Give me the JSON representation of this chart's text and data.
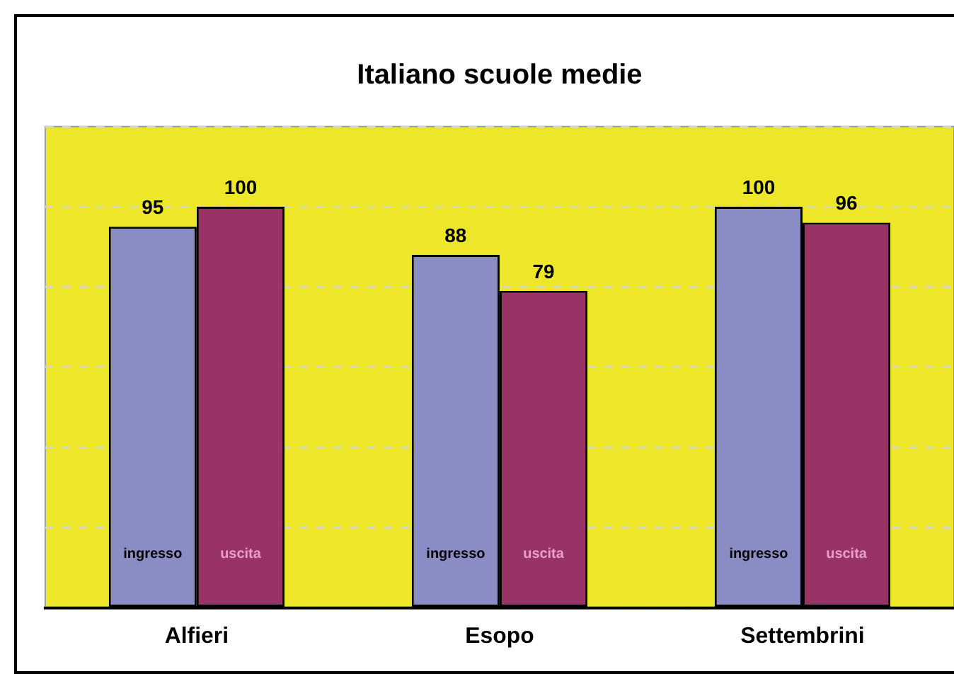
{
  "chart_data": {
    "type": "bar",
    "title": "Italiano scuole medie",
    "categories": [
      "Alfieri",
      "Esopo",
      "Settembrini"
    ],
    "series": [
      {
        "name": "ingresso",
        "color": "#8a8cc4",
        "values": [
          95,
          88,
          100
        ]
      },
      {
        "name": "uscita",
        "color": "#993366",
        "values": [
          100,
          79,
          96
        ]
      }
    ],
    "ylim": [
      0,
      120
    ],
    "grid": "y",
    "legend": false,
    "data_labels": true,
    "tick_labels": "x"
  }
}
